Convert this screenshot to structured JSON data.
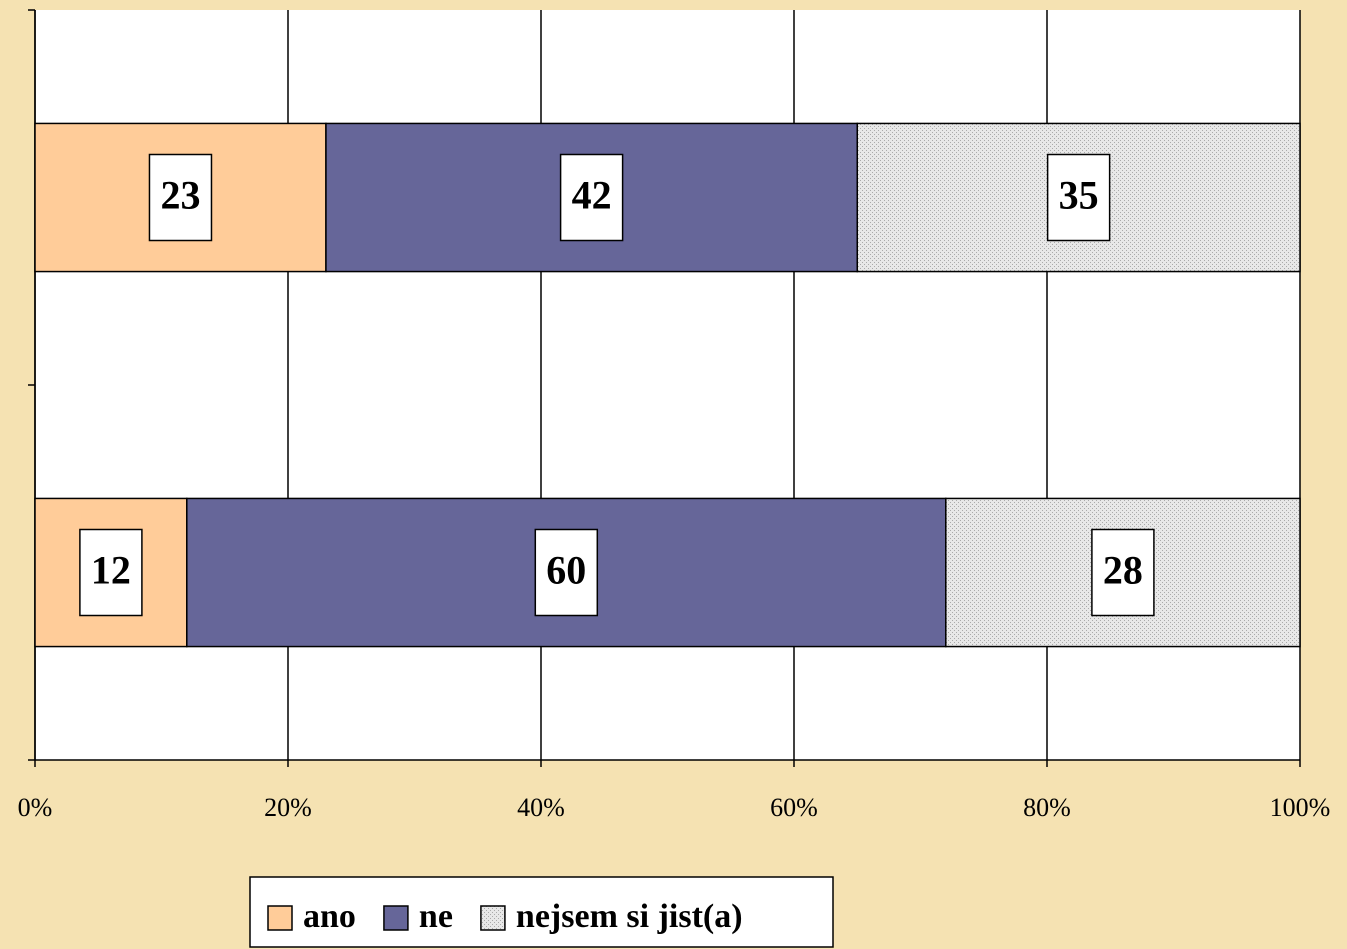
{
  "chart_data": {
    "type": "stacked_bar_horizontal",
    "categories": [
      null,
      null
    ],
    "series": [
      {
        "name": "ano",
        "color": "#ffcc99",
        "values": [
          23,
          12
        ]
      },
      {
        "name": "ne",
        "color": "#666699",
        "values": [
          42,
          60
        ]
      },
      {
        "name": "nejsem si jist(a)",
        "color": "#dcdcdc",
        "values": [
          35,
          28
        ]
      }
    ],
    "xlim": [
      0,
      100
    ],
    "xticks": [
      {
        "value": 0,
        "label": "0%"
      },
      {
        "value": 20,
        "label": "20%"
      },
      {
        "value": 40,
        "label": "40%"
      },
      {
        "value": 60,
        "label": "60%"
      },
      {
        "value": 80,
        "label": "80%"
      },
      {
        "value": 100,
        "label": "100%"
      }
    ],
    "grid": true,
    "legend": "bottom"
  }
}
